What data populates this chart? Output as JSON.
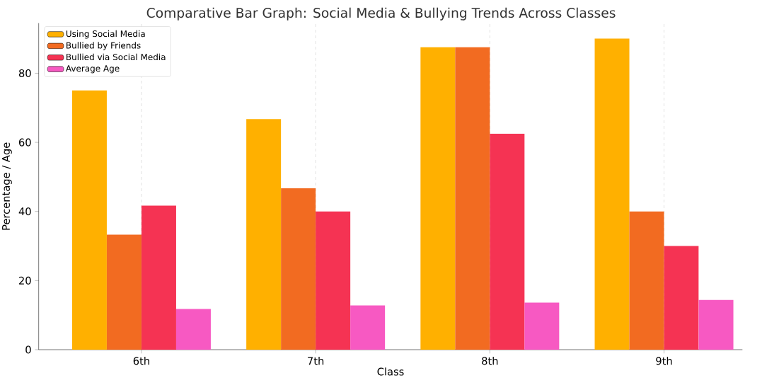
{
  "chart_data": {
    "type": "bar",
    "title": "Comparative Bar Graph: Social Media & Bullying Trends Across Classes",
    "xlabel": "Class",
    "ylabel": "Percentage / Age",
    "categories": [
      "6th",
      "7th",
      "8th",
      "9th"
    ],
    "series": [
      {
        "name": "Using Social Media",
        "color": "#ffb000",
        "values": [
          75,
          66.7,
          87.5,
          90
        ]
      },
      {
        "name": "Bullied by Friends",
        "color": "#f26b21",
        "values": [
          33.3,
          46.7,
          87.5,
          40
        ]
      },
      {
        "name": "Bullied via Social Media",
        "color": "#f53353",
        "values": [
          41.7,
          40,
          62.5,
          30
        ]
      },
      {
        "name": "Average Age",
        "color": "#f759c2",
        "values": [
          11.8,
          12.8,
          13.6,
          14.4
        ]
      }
    ],
    "ylim": [
      0,
      94.5
    ],
    "yticks": [
      0,
      20,
      40,
      60,
      80
    ],
    "grid": "x",
    "legend": "top left"
  }
}
